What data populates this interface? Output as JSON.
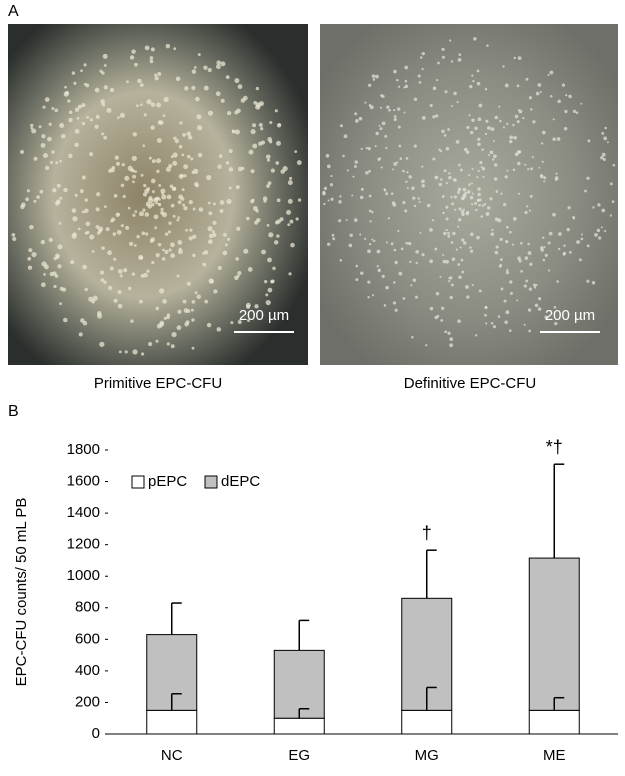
{
  "panel_labels": [
    "A",
    "B"
  ],
  "images": [
    {
      "scale_bar": "200 µm",
      "caption": "Primitive EPC-CFU"
    },
    {
      "scale_bar": "200 µm",
      "caption": "Definitive EPC-CFU"
    }
  ],
  "chart_data": {
    "type": "stacked-bar",
    "ylabel": "EPC-CFU counts/ 50 mL PB",
    "categories": [
      "NC",
      "EG",
      "MG",
      "ME"
    ],
    "series": [
      {
        "name": "pEPC",
        "color": "#ffffff",
        "values": [
          150,
          100,
          150,
          150
        ],
        "errors": [
          105,
          60,
          145,
          80
        ]
      },
      {
        "name": "dEPC",
        "color": "#c0c0c0",
        "values": [
          480,
          430,
          710,
          965
        ],
        "errors": [
          200,
          190,
          305,
          595
        ]
      }
    ],
    "annotations": [
      null,
      null,
      "†",
      "*†"
    ],
    "ylim": [
      0,
      1800
    ],
    "yticks": [
      0,
      200,
      400,
      600,
      800,
      1000,
      1200,
      1400,
      1600,
      1800
    ],
    "grid": false,
    "legend": "upper left"
  }
}
